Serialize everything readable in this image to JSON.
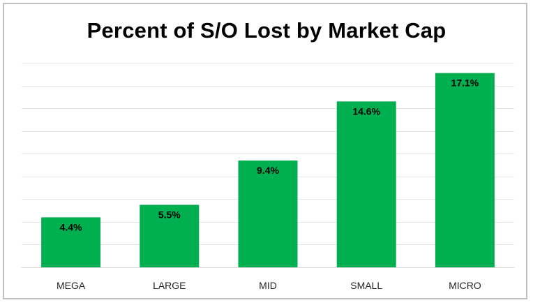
{
  "chart_data": {
    "type": "bar",
    "title": "Percent of S/O Lost by Market Cap",
    "xlabel": "",
    "ylabel": "",
    "categories": [
      "MEGA",
      "LARGE",
      "MID",
      "SMALL",
      "MICRO"
    ],
    "values": [
      4.4,
      5.5,
      9.4,
      14.6,
      17.1
    ],
    "data_labels": [
      "4.4%",
      "5.5%",
      "9.4%",
      "14.6%",
      "17.1%"
    ],
    "ylim": [
      0,
      18
    ],
    "grid": true,
    "legend": "none",
    "bar_color": "#00b050",
    "grid_color": "#e6e6e6"
  }
}
